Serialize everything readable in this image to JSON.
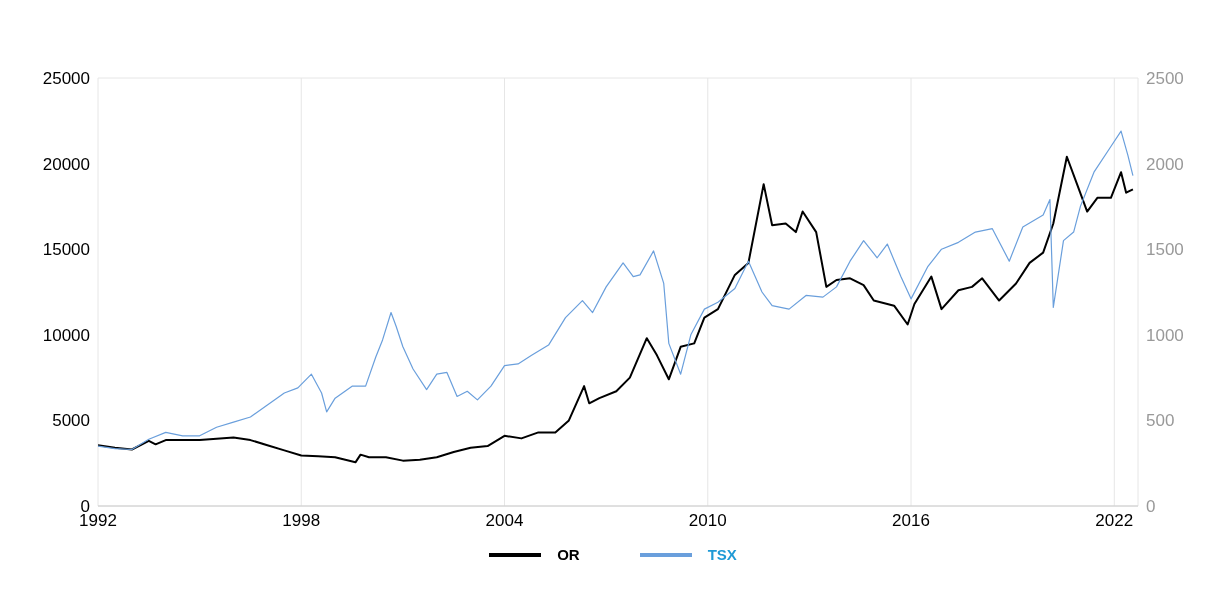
{
  "chart_data": {
    "type": "line",
    "xlim": [
      1992,
      2022.7
    ],
    "xticks": [
      1992,
      1998,
      2004,
      2010,
      2016,
      2022
    ],
    "ylim": [
      0,
      25000
    ],
    "yticks": [
      0,
      5000,
      10000,
      15000,
      20000,
      25000
    ],
    "y2lim": [
      0,
      2500
    ],
    "y2ticks": [
      0,
      500,
      1000,
      1500,
      2000,
      2500
    ],
    "grid": true,
    "legend": "bottom",
    "marker": "none",
    "line_style": "solid",
    "series": [
      {
        "name": "OR",
        "color": "#000000",
        "axis": "y2",
        "x": [
          1992.0,
          1992.5,
          1993.0,
          1993.5,
          1993.7,
          1994.0,
          1995.0,
          1996.0,
          1996.5,
          1997.0,
          1997.5,
          1998.0,
          1998.5,
          1999.0,
          1999.6,
          1999.75,
          2000.0,
          2000.5,
          2001.0,
          2001.5,
          2002.0,
          2002.5,
          2003.0,
          2003.5,
          2004.0,
          2004.5,
          2005.0,
          2005.5,
          2005.9,
          2006.35,
          2006.5,
          2006.8,
          2007.3,
          2007.7,
          2008.2,
          2008.5,
          2008.85,
          2009.2,
          2009.6,
          2009.9,
          2010.3,
          2010.8,
          2011.2,
          2011.65,
          2011.9,
          2012.3,
          2012.6,
          2012.8,
          2013.2,
          2013.5,
          2013.8,
          2014.2,
          2014.6,
          2014.9,
          2015.5,
          2015.9,
          2016.1,
          2016.6,
          2016.9,
          2017.4,
          2017.8,
          2018.1,
          2018.6,
          2019.1,
          2019.5,
          2019.9,
          2020.2,
          2020.6,
          2020.9,
          2021.2,
          2021.5,
          2021.9,
          2022.2,
          2022.35,
          2022.55
        ],
        "values": [
          355,
          340,
          330,
          380,
          360,
          385,
          385,
          400,
          385,
          355,
          325,
          295,
          290,
          285,
          255,
          300,
          285,
          285,
          265,
          270,
          285,
          315,
          340,
          350,
          410,
          395,
          430,
          430,
          500,
          700,
          600,
          630,
          670,
          750,
          980,
          880,
          740,
          930,
          950,
          1100,
          1150,
          1350,
          1420,
          1880,
          1640,
          1650,
          1600,
          1720,
          1600,
          1280,
          1320,
          1330,
          1290,
          1200,
          1170,
          1060,
          1180,
          1340,
          1150,
          1260,
          1280,
          1330,
          1200,
          1300,
          1420,
          1480,
          1650,
          2040,
          1880,
          1720,
          1800,
          1800,
          1950,
          1830,
          1850
        ]
      },
      {
        "name": "TSX",
        "color": "#6a9fdc",
        "x": [
          1992.0,
          1992.5,
          1993.0,
          1993.5,
          1994.0,
          1994.5,
          1995.0,
          1995.5,
          1996.0,
          1996.5,
          1997.0,
          1997.5,
          1997.9,
          1998.3,
          1998.6,
          1998.75,
          1999.0,
          1999.5,
          1999.9,
          2000.2,
          2000.4,
          2000.65,
          2000.8,
          2001.0,
          2001.3,
          2001.7,
          2002.0,
          2002.3,
          2002.6,
          2002.9,
          2003.2,
          2003.6,
          2004.0,
          2004.4,
          2004.8,
          2005.3,
          2005.8,
          2006.3,
          2006.6,
          2007.0,
          2007.5,
          2007.8,
          2008.0,
          2008.4,
          2008.7,
          2008.85,
          2009.2,
          2009.5,
          2009.9,
          2010.3,
          2010.8,
          2011.2,
          2011.6,
          2011.9,
          2012.4,
          2012.9,
          2013.4,
          2013.8,
          2014.2,
          2014.6,
          2015.0,
          2015.3,
          2015.7,
          2016.0,
          2016.5,
          2016.9,
          2017.4,
          2017.9,
          2018.4,
          2018.9,
          2019.3,
          2019.9,
          2020.1,
          2020.2,
          2020.5,
          2020.8,
          2021.0,
          2021.4,
          2021.9,
          2022.2,
          2022.4,
          2022.55
        ],
        "values": [
          3500,
          3350,
          3300,
          3900,
          4300,
          4100,
          4100,
          4600,
          4900,
          5200,
          5900,
          6600,
          6900,
          7700,
          6600,
          5500,
          6300,
          7000,
          7000,
          8700,
          9700,
          11300,
          10500,
          9300,
          8000,
          6800,
          7700,
          7800,
          6400,
          6700,
          6200,
          7000,
          8200,
          8300,
          8800,
          9400,
          11000,
          12000,
          11300,
          12800,
          14200,
          13400,
          13500,
          14900,
          13000,
          9500,
          7700,
          10000,
          11500,
          11900,
          12700,
          14300,
          12500,
          11700,
          11500,
          12300,
          12200,
          12800,
          14300,
          15500,
          14500,
          15300,
          13400,
          12100,
          14000,
          15000,
          15400,
          16000,
          16200,
          14300,
          16300,
          17000,
          17900,
          11600,
          15500,
          16000,
          17500,
          19500,
          21000,
          21900,
          20500,
          19300
        ]
      }
    ]
  }
}
